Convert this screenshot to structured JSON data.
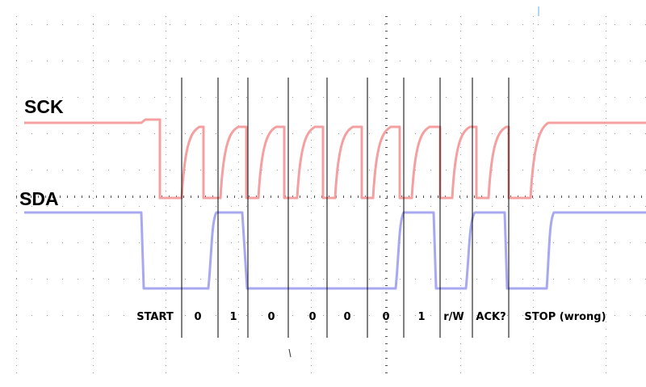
{
  "signals": {
    "scl": {
      "label": "SCK",
      "color": "#f4a0a0"
    },
    "sda": {
      "label": "SDA",
      "color": "#a8a8f0"
    }
  },
  "segments": [
    {
      "label": "START"
    },
    {
      "label": "0"
    },
    {
      "label": "1"
    },
    {
      "label": "0"
    },
    {
      "label": "0"
    },
    {
      "label": "0"
    },
    {
      "label": "0"
    },
    {
      "label": "1"
    },
    {
      "label": "r/W"
    },
    {
      "label": "ACK?"
    },
    {
      "label": "STOP (wrong)"
    }
  ],
  "colors": {
    "divider": "#000000",
    "grid": "#9a9a9a",
    "background": "#ffffff"
  }
}
